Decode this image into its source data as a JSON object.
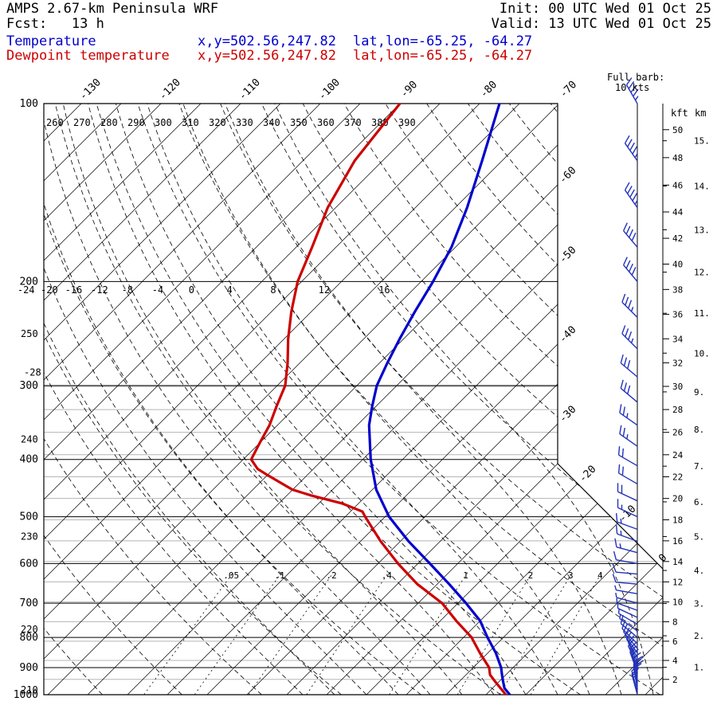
{
  "header": {
    "title": "AMPS 2.67-km Peninsula WRF",
    "fcst_line": "Fcst:   13 h",
    "init_line": "Init: 00 UTC Wed 01 Oct 25",
    "valid_line": "Valid: 13 UTC Wed 01 Oct 25"
  },
  "legend": {
    "temperature": {
      "label": "Temperature",
      "xy": "x,y=502.56,247.82",
      "latlon": "lat,lon=-65.25, -64.27"
    },
    "dewpoint": {
      "label": "Dewpoint temperature",
      "xy": "x,y=502.56,247.82",
      "latlon": "lat,lon=-65.25, -64.27"
    }
  },
  "wind_note": {
    "line1": "Full barb:",
    "line2": "10 kts"
  },
  "colors": {
    "temperature": "#0000cc",
    "dewpoint": "#cc0000",
    "barbs": "#2233bb",
    "grid": "#000000",
    "height_lines": "#b5b5b5"
  },
  "axes": {
    "pressure_hpa": [
      100,
      200,
      300,
      400,
      500,
      600,
      700,
      800,
      900,
      1000
    ],
    "isotherm_top_labels": [
      -130,
      -120,
      -110,
      -100,
      -90,
      -80,
      -70
    ],
    "isotherm_right_labels": [
      -60,
      -50,
      -40,
      -30,
      -20,
      -10,
      0
    ],
    "theta_top_labels": [
      260,
      270,
      280,
      290,
      300,
      310,
      320,
      330,
      340,
      350,
      360,
      370,
      380,
      390
    ],
    "theta_left_labels": [
      250,
      240,
      230,
      220,
      210
    ],
    "moist_adiabat_labels": [
      -28,
      -24,
      -20,
      -16,
      -12,
      -8,
      -4,
      0,
      4,
      8,
      12,
      16
    ],
    "mixing_ratio_values": [
      0.05,
      0.1,
      0.2,
      0.4,
      1,
      2,
      3,
      4
    ],
    "mixing_ratio_labels": [
      ".05",
      ".1",
      ".2",
      ".4",
      "1",
      "2",
      "3",
      "4"
    ],
    "height_kft_header": "kft",
    "height_km_header": "km",
    "kft_ticks": [
      2,
      4,
      6,
      8,
      10,
      12,
      14,
      16,
      18,
      20,
      22,
      24,
      26,
      28,
      30,
      32,
      34,
      36,
      38,
      40,
      42,
      44,
      46,
      48,
      50
    ],
    "km_tick_labels": [
      "1.",
      "2.",
      "3.",
      "4.",
      "5.",
      "6.",
      "7.",
      "8.",
      "9.",
      "10.",
      "11.",
      "12.",
      "13.",
      "14.",
      "15."
    ]
  },
  "chart_data": {
    "type": "skewt-log-p",
    "title": "AMPS 2.67-km Peninsula WRF sounding, 13 h forecast valid 13 UTC Wed 01 Oct 25",
    "pressure_range_hpa": [
      100,
      1000
    ],
    "units": {
      "pressure": "hPa",
      "temperature": "C",
      "wind": "kt",
      "mixing_ratio": "g/kg"
    },
    "temperature_profile_c": [
      [
        100,
        -77.5
      ],
      [
        125,
        -72.5
      ],
      [
        150,
        -68.5
      ],
      [
        175,
        -65.5
      ],
      [
        200,
        -63.5
      ],
      [
        225,
        -62
      ],
      [
        250,
        -60.5
      ],
      [
        275,
        -59
      ],
      [
        300,
        -57.5
      ],
      [
        325,
        -55.5
      ],
      [
        350,
        -53.5
      ],
      [
        400,
        -49
      ],
      [
        450,
        -44.5
      ],
      [
        500,
        -39.5
      ],
      [
        550,
        -34
      ],
      [
        600,
        -28.5
      ],
      [
        650,
        -23.5
      ],
      [
        700,
        -19
      ],
      [
        750,
        -15
      ],
      [
        800,
        -12
      ],
      [
        850,
        -9
      ],
      [
        900,
        -6.5
      ],
      [
        925,
        -5.5
      ],
      [
        950,
        -4.5
      ],
      [
        975,
        -3.5
      ],
      [
        1000,
        -2
      ]
    ],
    "dewpoint_profile_c": [
      [
        100,
        -90
      ],
      [
        125,
        -88.5
      ],
      [
        150,
        -86
      ],
      [
        175,
        -83
      ],
      [
        200,
        -80.5
      ],
      [
        225,
        -77.5
      ],
      [
        250,
        -74.5
      ],
      [
        275,
        -71.5
      ],
      [
        300,
        -69
      ],
      [
        325,
        -67.5
      ],
      [
        350,
        -66
      ],
      [
        375,
        -65
      ],
      [
        400,
        -64
      ],
      [
        415,
        -62
      ],
      [
        425,
        -60
      ],
      [
        440,
        -57
      ],
      [
        450,
        -55
      ],
      [
        460,
        -52
      ],
      [
        475,
        -47
      ],
      [
        490,
        -43.5
      ],
      [
        500,
        -42.5
      ],
      [
        550,
        -37.5
      ],
      [
        600,
        -32.5
      ],
      [
        650,
        -27.5
      ],
      [
        700,
        -22
      ],
      [
        750,
        -18
      ],
      [
        800,
        -14
      ],
      [
        850,
        -11
      ],
      [
        900,
        -8
      ],
      [
        925,
        -7
      ],
      [
        950,
        -5.5
      ],
      [
        975,
        -4
      ],
      [
        1000,
        -2.5
      ]
    ],
    "wind_barbs": [
      [
        1000,
        345,
        15
      ],
      [
        988,
        345,
        15
      ],
      [
        976,
        350,
        15
      ],
      [
        964,
        350,
        20
      ],
      [
        952,
        355,
        20
      ],
      [
        940,
        350,
        20
      ],
      [
        928,
        345,
        15
      ],
      [
        916,
        340,
        15
      ],
      [
        904,
        340,
        15
      ],
      [
        892,
        335,
        10
      ],
      [
        880,
        335,
        10
      ],
      [
        865,
        330,
        10
      ],
      [
        850,
        325,
        10
      ],
      [
        835,
        320,
        10
      ],
      [
        820,
        315,
        10
      ],
      [
        800,
        310,
        10
      ],
      [
        780,
        305,
        5
      ],
      [
        760,
        300,
        5
      ],
      [
        740,
        295,
        5
      ],
      [
        720,
        290,
        5
      ],
      [
        700,
        285,
        5
      ],
      [
        675,
        280,
        5
      ],
      [
        650,
        275,
        10
      ],
      [
        625,
        275,
        10
      ],
      [
        600,
        280,
        10
      ],
      [
        575,
        285,
        15
      ],
      [
        550,
        290,
        15
      ],
      [
        525,
        290,
        15
      ],
      [
        500,
        295,
        15
      ],
      [
        470,
        295,
        20
      ],
      [
        440,
        300,
        20
      ],
      [
        410,
        300,
        20
      ],
      [
        380,
        305,
        25
      ],
      [
        350,
        305,
        25
      ],
      [
        320,
        310,
        30
      ],
      [
        290,
        310,
        30
      ],
      [
        260,
        315,
        35
      ],
      [
        230,
        315,
        35
      ],
      [
        200,
        320,
        40
      ],
      [
        175,
        320,
        40
      ],
      [
        150,
        325,
        45
      ],
      [
        125,
        325,
        45
      ],
      [
        100,
        330,
        45
      ]
    ]
  }
}
